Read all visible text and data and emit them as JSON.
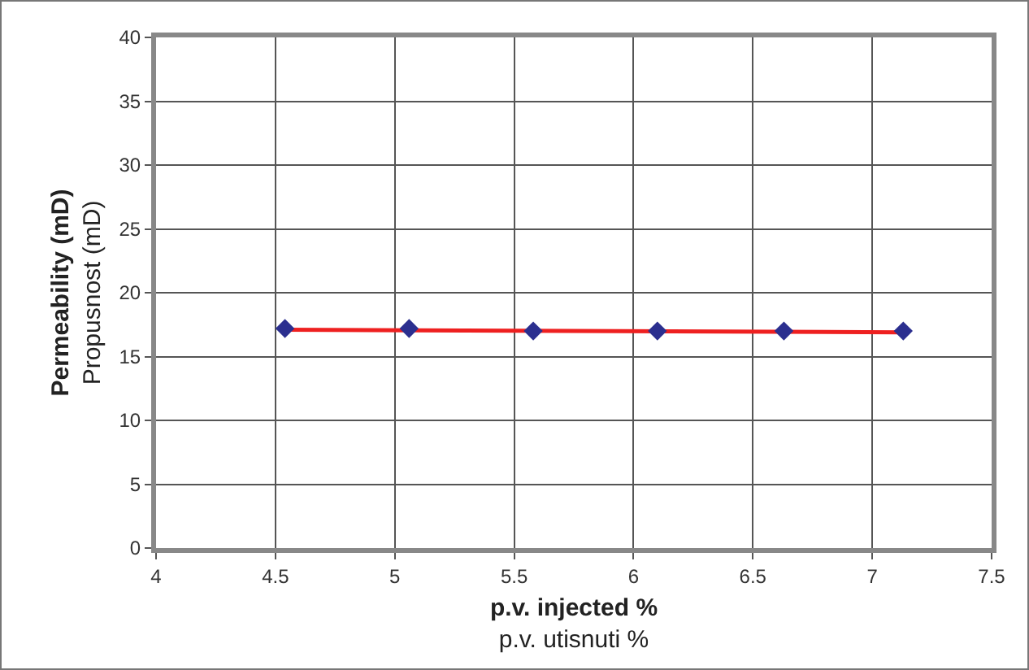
{
  "chart_data": {
    "type": "scatter",
    "xlabel": "p.v. injected %\np.v. utisnuti %",
    "ylabel": "Permeability (mD)\nPropusnost (mD)",
    "x": [
      4.54,
      5.06,
      5.58,
      6.1,
      6.63,
      7.13
    ],
    "series": [
      {
        "color": "#2b2f8f",
        "marker": "diamond",
        "values": [
          17.2,
          17.2,
          17.0,
          17.0,
          17.0,
          17.0
        ]
      },
      {
        "type": "line",
        "color": "#ee2020",
        "marker": "none",
        "x": [
          4.54,
          7.13
        ],
        "values": [
          17.1,
          16.9
        ]
      }
    ],
    "xlim": [
      4,
      7.5
    ],
    "xticks": [
      4,
      4.5,
      5,
      5.5,
      6,
      6.5,
      7,
      7.5
    ],
    "ylim": [
      0,
      40
    ],
    "yticks": [
      0,
      5,
      10,
      15,
      20,
      25,
      30,
      35,
      40
    ],
    "grid": true
  }
}
